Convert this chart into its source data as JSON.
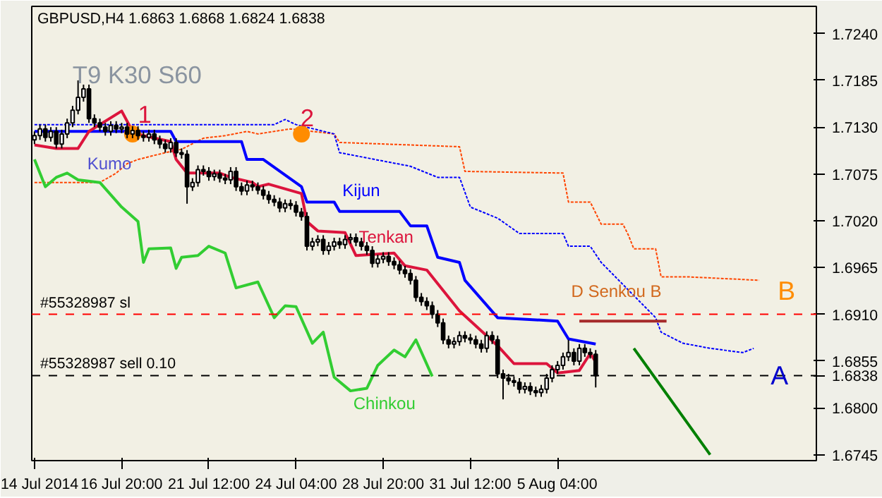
{
  "chart_data": {
    "type": "candlestick",
    "title": "GBPUSD,H4 1.6863 1.6868 1.6824 1.6838",
    "categories": [
      "14 Jul 2014",
      null,
      null,
      null,
      null,
      null,
      null,
      null,
      null,
      null,
      null,
      null,
      null,
      null,
      null,
      null,
      "16 Jul 20:00",
      null,
      null,
      null,
      null,
      null,
      null,
      null,
      null,
      null,
      null,
      null,
      null,
      null,
      null,
      null,
      "21 Jul 12:00",
      null,
      null,
      null,
      null,
      null,
      null,
      null,
      null,
      null,
      null,
      null,
      null,
      null,
      null,
      null,
      "24 Jul 04:00",
      null,
      null,
      null,
      null,
      null,
      null,
      null,
      null,
      null,
      null,
      null,
      null,
      null,
      null,
      null,
      "28 Jul 20:00",
      null,
      null,
      null,
      null,
      null,
      null,
      null,
      null,
      null,
      null,
      null,
      null,
      null,
      null,
      null,
      "31 Jul 12:00",
      null,
      null,
      null,
      null,
      null,
      null,
      null,
      null,
      null,
      null,
      null,
      null,
      null,
      null,
      null,
      "5 Aug 04:00",
      null,
      null,
      null,
      null,
      null,
      null,
      null,
      null,
      null,
      null,
      null,
      null,
      null,
      null,
      null,
      null,
      null,
      null,
      null,
      null,
      null,
      null,
      null,
      null,
      null,
      null,
      null,
      null,
      null,
      null,
      null,
      null,
      null,
      null,
      null,
      null,
      null,
      null,
      null,
      null,
      null,
      null,
      null,
      null,
      null,
      null,
      null
    ],
    "ohlc": [
      [
        1.7115,
        1.7125,
        1.711,
        1.712
      ],
      [
        1.712,
        1.7133,
        1.7115,
        1.7128
      ],
      [
        1.7128,
        1.7133,
        1.7113,
        1.7118
      ],
      [
        1.7118,
        1.713,
        1.7113,
        1.7125
      ],
      [
        1.7125,
        1.713,
        1.7105,
        1.711
      ],
      [
        1.711,
        1.7127,
        1.7105,
        1.7122
      ],
      [
        1.7122,
        1.714,
        1.7117,
        1.7135
      ],
      [
        1.7135,
        1.7155,
        1.713,
        1.715
      ],
      [
        1.715,
        1.7185,
        1.7145,
        1.7165
      ],
      [
        1.7165,
        1.718,
        1.716,
        1.7175
      ],
      [
        1.7175,
        1.718,
        1.7135,
        1.714
      ],
      [
        1.714,
        1.7145,
        1.713,
        1.7135
      ],
      [
        1.7135,
        1.714,
        1.7125,
        1.713
      ],
      [
        1.713,
        1.7135,
        1.712,
        1.7125
      ],
      [
        1.7125,
        1.7137,
        1.712,
        1.7132
      ],
      [
        1.7132,
        1.7137,
        1.7123,
        1.7128
      ],
      [
        1.7128,
        1.7135,
        1.7123,
        1.713
      ],
      [
        1.713,
        1.7135,
        1.7117,
        1.7122
      ],
      [
        1.7122,
        1.7131,
        1.7117,
        1.7126
      ],
      [
        1.7126,
        1.7131,
        1.7115,
        1.712
      ],
      [
        1.712,
        1.7125,
        1.7113,
        1.7118
      ],
      [
        1.7118,
        1.7127,
        1.7113,
        1.7122
      ],
      [
        1.7122,
        1.7127,
        1.711,
        1.7115
      ],
      [
        1.7115,
        1.712,
        1.7105,
        1.711
      ],
      [
        1.711,
        1.7115,
        1.71,
        1.7105
      ],
      [
        1.7105,
        1.7117,
        1.71,
        1.7112
      ],
      [
        1.7112,
        1.7117,
        1.7095,
        1.71
      ],
      [
        1.71,
        1.7105,
        1.7093,
        1.7098
      ],
      [
        1.7098,
        1.7103,
        1.704,
        1.706
      ],
      [
        1.706,
        1.707,
        1.7055,
        1.7065
      ],
      [
        1.7065,
        1.7085,
        1.706,
        1.708
      ],
      [
        1.708,
        1.7085,
        1.7073,
        1.7078
      ],
      [
        1.7078,
        1.7083,
        1.7067,
        1.7072
      ],
      [
        1.7072,
        1.708,
        1.7067,
        1.7075
      ],
      [
        1.7075,
        1.708,
        1.7065,
        1.707
      ],
      [
        1.707,
        1.7075,
        1.7063,
        1.7068
      ],
      [
        1.7068,
        1.7083,
        1.7063,
        1.7078
      ],
      [
        1.7078,
        1.7083,
        1.7055,
        1.706
      ],
      [
        1.706,
        1.7065,
        1.705,
        1.7055
      ],
      [
        1.7055,
        1.7067,
        1.705,
        1.7062
      ],
      [
        1.7062,
        1.7067,
        1.7055,
        1.706
      ],
      [
        1.706,
        1.7065,
        1.7051,
        1.7056
      ],
      [
        1.7056,
        1.7061,
        1.7045,
        1.705
      ],
      [
        1.705,
        1.7055,
        1.704,
        1.7045
      ],
      [
        1.7045,
        1.705,
        1.7037,
        1.7042
      ],
      [
        1.7042,
        1.7047,
        1.703,
        1.7035
      ],
      [
        1.7035,
        1.7045,
        1.703,
        1.704
      ],
      [
        1.704,
        1.7045,
        1.7033,
        1.7038
      ],
      [
        1.7038,
        1.7043,
        1.7025,
        1.703
      ],
      [
        1.703,
        1.7035,
        1.702,
        1.7025
      ],
      [
        1.7025,
        1.703,
        1.6985,
        1.699
      ],
      [
        1.699,
        1.7,
        1.6985,
        1.6995
      ],
      [
        1.6995,
        1.7003,
        1.699,
        1.6998
      ],
      [
        1.6998,
        1.7003,
        1.698,
        1.6985
      ],
      [
        1.6985,
        1.6995,
        1.698,
        1.699
      ],
      [
        1.699,
        1.7,
        1.6985,
        1.6995
      ],
      [
        1.6995,
        1.7,
        1.6987,
        1.6992
      ],
      [
        1.6992,
        1.7003,
        1.6987,
        1.6998
      ],
      [
        1.6998,
        1.7005,
        1.6993,
        1.7
      ],
      [
        1.7,
        1.7005,
        1.699,
        1.6995
      ],
      [
        1.6995,
        1.7,
        1.6985,
        1.699
      ],
      [
        1.699,
        1.6995,
        1.698,
        1.6985
      ],
      [
        1.6985,
        1.699,
        1.6965,
        1.697
      ],
      [
        1.697,
        1.698,
        1.6965,
        1.6975
      ],
      [
        1.6975,
        1.6983,
        1.697,
        1.6978
      ],
      [
        1.6978,
        1.6983,
        1.6967,
        1.6972
      ],
      [
        1.6972,
        1.6977,
        1.6963,
        1.6968
      ],
      [
        1.6968,
        1.6973,
        1.6957,
        1.6962
      ],
      [
        1.6962,
        1.6967,
        1.6953,
        1.6958
      ],
      [
        1.6958,
        1.6963,
        1.6945,
        1.695
      ],
      [
        1.695,
        1.6955,
        1.6925,
        1.693
      ],
      [
        1.693,
        1.6935,
        1.692,
        1.6925
      ],
      [
        1.6925,
        1.693,
        1.6915,
        1.692
      ],
      [
        1.692,
        1.6925,
        1.6905,
        1.691
      ],
      [
        1.691,
        1.6915,
        1.6895,
        1.69
      ],
      [
        1.69,
        1.6905,
        1.6875,
        1.688
      ],
      [
        1.688,
        1.6885,
        1.687,
        1.6875
      ],
      [
        1.6875,
        1.6883,
        1.687,
        1.6878
      ],
      [
        1.6878,
        1.689,
        1.6873,
        1.6885
      ],
      [
        1.6885,
        1.689,
        1.6877,
        1.6882
      ],
      [
        1.6882,
        1.6887,
        1.6875,
        1.688
      ],
      [
        1.688,
        1.6885,
        1.687,
        1.6875
      ],
      [
        1.6875,
        1.688,
        1.6865,
        1.687
      ],
      [
        1.687,
        1.689,
        1.6865,
        1.6885
      ],
      [
        1.6885,
        1.689,
        1.6875,
        1.688
      ],
      [
        1.688,
        1.6885,
        1.6835,
        1.684
      ],
      [
        1.684,
        1.6845,
        1.681,
        1.6835
      ],
      [
        1.6835,
        1.684,
        1.6827,
        1.6832
      ],
      [
        1.6832,
        1.6837,
        1.6825,
        1.683
      ],
      [
        1.683,
        1.6835,
        1.6817,
        1.6822
      ],
      [
        1.6822,
        1.683,
        1.6817,
        1.6825
      ],
      [
        1.6825,
        1.683,
        1.6815,
        1.682
      ],
      [
        1.682,
        1.6825,
        1.6813,
        1.6818
      ],
      [
        1.6818,
        1.6827,
        1.6813,
        1.6822
      ],
      [
        1.6822,
        1.684,
        1.6817,
        1.6835
      ],
      [
        1.6835,
        1.685,
        1.683,
        1.6845
      ],
      [
        1.6845,
        1.6855,
        1.684,
        1.685
      ],
      [
        1.685,
        1.6865,
        1.6845,
        1.686
      ],
      [
        1.686,
        1.688,
        1.6855,
        1.6865
      ],
      [
        1.6865,
        1.687,
        1.685,
        1.6855
      ],
      [
        1.6855,
        1.6875,
        1.685,
        1.687
      ],
      [
        1.687,
        1.6875,
        1.686,
        1.6865
      ],
      [
        1.6865,
        1.687,
        1.6858,
        1.6863
      ],
      [
        1.6863,
        1.6868,
        1.6824,
        1.6838
      ],
      null,
      null,
      null,
      null,
      null,
      null,
      null,
      null,
      null,
      null,
      null,
      null,
      null,
      null,
      null,
      null,
      null,
      null,
      null,
      null,
      null,
      null,
      null,
      null,
      null,
      null,
      null,
      null,
      null,
      null,
      null,
      null,
      null,
      null,
      null,
      null,
      null,
      null,
      null,
      null
    ],
    "series": [
      {
        "type": "line",
        "color": "#ff4500",
        "line_style": "dotted",
        "values": [
          1.7065,
          null,
          null,
          null,
          null,
          null,
          null,
          null,
          null,
          null,
          null,
          null,
          1.7065,
          null,
          null,
          1.7076,
          null,
          1.7087,
          null,
          1.7092,
          null,
          null,
          null,
          null,
          1.71,
          null,
          null,
          1.7104,
          null,
          null,
          null,
          1.7117,
          null,
          null,
          null,
          1.712,
          null,
          null,
          null,
          1.7125,
          null,
          1.7122,
          null,
          null,
          null,
          null,
          null,
          1.7128,
          null,
          null,
          null,
          null,
          null,
          null,
          null,
          1.7122,
          1.7112,
          null,
          null,
          null,
          null,
          null,
          null,
          null,
          null,
          null,
          null,
          null,
          null,
          null,
          null,
          null,
          null,
          null,
          null,
          null,
          null,
          null,
          1.7107,
          1.7078,
          null,
          null,
          null,
          null,
          null,
          null,
          null,
          null,
          null,
          null,
          null,
          null,
          null,
          null,
          null,
          null,
          null,
          1.7076,
          1.7042,
          null,
          null,
          null,
          1.7042,
          null,
          1.7016,
          null,
          null,
          null,
          1.7016,
          1.7003,
          1.6987,
          null,
          null,
          null,
          1.6987,
          1.6954,
          null,
          null,
          null,
          null,
          1.6954,
          null,
          null,
          null,
          null,
          null,
          null,
          null,
          null,
          null,
          null,
          null,
          null,
          1.695,
          null,
          null,
          null,
          null,
          null,
          null,
          null,
          null,
          null,
          null
        ]
      },
      {
        "type": "line",
        "color": "#0000ff",
        "line_style": "dotted",
        "values": [
          1.7133,
          null,
          null,
          null,
          null,
          null,
          null,
          null,
          null,
          null,
          null,
          null,
          null,
          null,
          null,
          null,
          null,
          null,
          null,
          null,
          null,
          null,
          null,
          null,
          null,
          1.7133,
          null,
          null,
          null,
          null,
          null,
          null,
          null,
          null,
          null,
          null,
          null,
          null,
          null,
          null,
          null,
          null,
          null,
          null,
          1.7133,
          null,
          1.7139,
          null,
          1.7133,
          null,
          null,
          null,
          null,
          null,
          null,
          1.7122,
          1.71,
          null,
          null,
          null,
          null,
          null,
          null,
          null,
          null,
          null,
          null,
          null,
          null,
          1.7084,
          null,
          null,
          null,
          null,
          1.7071,
          null,
          null,
          null,
          1.7071,
          null,
          1.7036,
          null,
          null,
          null,
          null,
          1.7023,
          null,
          null,
          null,
          1.7005,
          null,
          null,
          null,
          null,
          null,
          null,
          null,
          1.7005,
          1.699,
          null,
          null,
          null,
          1.699,
          null,
          1.6971,
          null,
          null,
          null,
          null,
          null,
          null,
          null,
          null,
          null,
          1.6906,
          1.6889,
          null,
          null,
          null,
          1.6876,
          null,
          null,
          null,
          null,
          1.687,
          null,
          null,
          null,
          null,
          null,
          1.6865,
          null,
          1.687,
          null,
          null,
          null,
          null,
          null,
          null,
          null,
          null,
          null,
          null,
          null
        ]
      },
      {
        "type": "line",
        "name": "Kijun",
        "color": "#0000ff",
        "values": [
          1.7125,
          null,
          null,
          null,
          null,
          null,
          null,
          null,
          null,
          null,
          null,
          null,
          null,
          null,
          null,
          null,
          null,
          null,
          null,
          null,
          null,
          null,
          null,
          null,
          null,
          1.7125,
          1.7113,
          null,
          null,
          null,
          null,
          null,
          null,
          null,
          null,
          null,
          null,
          null,
          1.7113,
          1.7092,
          null,
          null,
          1.7092,
          null,
          null,
          null,
          null,
          null,
          null,
          1.706,
          1.7042,
          null,
          null,
          null,
          null,
          1.7042,
          1.7031,
          null,
          null,
          null,
          null,
          null,
          null,
          null,
          null,
          null,
          null,
          1.7031,
          null,
          1.7014,
          null,
          null,
          1.7014,
          null,
          1.6977,
          null,
          null,
          null,
          1.6971,
          1.695,
          null,
          null,
          null,
          null,
          null,
          1.6906,
          null,
          null,
          null,
          null,
          null,
          null,
          null,
          null,
          null,
          null,
          1.6902,
          null,
          1.6881,
          null,
          null,
          null,
          null,
          1.6875,
          null,
          null,
          null,
          null,
          null,
          null,
          null,
          null,
          null,
          null,
          null,
          null,
          null,
          null,
          null,
          null,
          null,
          null,
          null,
          null,
          null,
          null,
          null,
          null,
          null,
          null,
          null,
          null,
          null,
          null,
          null,
          null,
          null,
          null,
          null,
          null,
          null,
          null,
          null,
          null
        ]
      },
      {
        "type": "line",
        "name": "Tenkan",
        "color": "#dc143c",
        "values": [
          1.7109,
          null,
          null,
          null,
          1.7105,
          null,
          null,
          null,
          1.7105,
          null,
          1.7125,
          null,
          null,
          null,
          null,
          null,
          1.7149,
          null,
          1.7125,
          null,
          1.712,
          null,
          null,
          null,
          null,
          1.7113,
          1.7092,
          null,
          1.7076,
          null,
          null,
          null,
          null,
          null,
          1.7076,
          null,
          1.7071,
          null,
          null,
          null,
          1.7065,
          1.706,
          null,
          1.7063,
          null,
          null,
          null,
          null,
          null,
          1.7052,
          1.7019,
          null,
          1.7008,
          null,
          null,
          null,
          null,
          1.7006,
          null,
          1.6979,
          null,
          null,
          null,
          null,
          null,
          null,
          1.6982,
          null,
          1.6967,
          null,
          null,
          null,
          1.6962,
          null,
          null,
          1.6938,
          null,
          null,
          1.6914,
          null,
          null,
          null,
          null,
          null,
          null,
          1.6873,
          null,
          null,
          1.6852,
          null,
          null,
          null,
          null,
          null,
          1.6852,
          null,
          1.6841,
          null,
          null,
          null,
          1.6844,
          null,
          1.6864,
          1.6854,
          null,
          null,
          null,
          null,
          null,
          null,
          null,
          null,
          null,
          null,
          null,
          null,
          null,
          null,
          null,
          null,
          null,
          null,
          null,
          null,
          null,
          null,
          null,
          null,
          null,
          null,
          null,
          null,
          null,
          null,
          null,
          null,
          null,
          null,
          null,
          null,
          null,
          null,
          null,
          null
        ]
      },
      {
        "type": "line",
        "name": "Chinkou",
        "color": "#32cd32",
        "values": [
          1.7092,
          null,
          1.706,
          null,
          1.7071,
          null,
          1.7076,
          null,
          1.7068,
          null,
          null,
          null,
          1.7065,
          null,
          null,
          null,
          1.7036,
          null,
          null,
          1.7019,
          1.6971,
          1.6987,
          null,
          null,
          null,
          1.6988,
          1.6964,
          1.6977,
          null,
          null,
          1.6979,
          null,
          1.699,
          null,
          null,
          1.6982,
          null,
          1.6941,
          null,
          null,
          null,
          1.6948,
          null,
          null,
          1.6906,
          null,
          1.692,
          null,
          1.6919,
          null,
          null,
          1.6876,
          null,
          1.6889,
          null,
          1.6836,
          null,
          null,
          1.682,
          null,
          null,
          1.6823,
          null,
          1.685,
          null,
          null,
          1.6868,
          null,
          1.686,
          null,
          1.688,
          null,
          null,
          1.6837,
          null,
          null,
          null,
          null,
          null,
          null,
          null,
          null,
          null,
          null,
          null,
          null,
          null,
          null,
          null,
          null,
          null,
          null,
          null,
          null,
          null,
          null,
          null,
          null,
          null,
          null,
          null,
          null,
          null,
          null,
          null,
          null,
          null,
          null,
          null,
          null,
          null,
          null,
          null,
          null,
          null,
          null,
          null,
          null,
          null,
          null,
          null,
          null,
          null,
          null,
          null,
          null,
          null,
          null,
          null,
          null,
          null,
          null,
          null,
          null,
          null,
          null,
          null,
          null,
          null,
          null,
          null,
          null,
          null,
          null
        ]
      },
      {
        "type": "line",
        "color": "#a52a2a",
        "values": [
          null,
          null,
          null,
          null,
          null,
          null,
          null,
          null,
          null,
          null,
          null,
          null,
          null,
          null,
          null,
          null,
          null,
          null,
          null,
          null,
          null,
          null,
          null,
          null,
          null,
          null,
          null,
          null,
          null,
          null,
          null,
          null,
          null,
          null,
          null,
          null,
          null,
          null,
          null,
          null,
          null,
          null,
          null,
          null,
          null,
          null,
          null,
          null,
          null,
          null,
          null,
          null,
          null,
          null,
          null,
          null,
          null,
          null,
          null,
          null,
          null,
          null,
          null,
          null,
          null,
          null,
          null,
          null,
          null,
          null,
          null,
          null,
          null,
          null,
          null,
          null,
          null,
          null,
          null,
          null,
          null,
          null,
          null,
          null,
          null,
          null,
          null,
          null,
          null,
          null,
          null,
          null,
          null,
          null,
          null,
          null,
          null,
          null,
          null,
          null,
          1.6902,
          null,
          null,
          null,
          null,
          null,
          null,
          null,
          null,
          null,
          null,
          null,
          null,
          null,
          null,
          null,
          1.6902,
          null,
          null,
          null,
          null,
          null,
          null,
          null,
          null,
          null,
          null,
          null,
          null,
          null,
          null,
          null,
          null,
          null,
          null,
          null,
          null,
          null,
          null,
          null,
          null,
          null,
          null,
          null
        ]
      },
      {
        "type": "line",
        "color": "#008000",
        "values": [
          null,
          null,
          null,
          null,
          null,
          null,
          null,
          null,
          null,
          null,
          null,
          null,
          null,
          null,
          null,
          null,
          null,
          null,
          null,
          null,
          null,
          null,
          null,
          null,
          null,
          null,
          null,
          null,
          null,
          null,
          null,
          null,
          null,
          null,
          null,
          null,
          null,
          null,
          null,
          null,
          null,
          null,
          null,
          null,
          null,
          null,
          null,
          null,
          null,
          null,
          null,
          null,
          null,
          null,
          null,
          null,
          null,
          null,
          null,
          null,
          null,
          null,
          null,
          null,
          null,
          null,
          null,
          null,
          null,
          null,
          null,
          null,
          null,
          null,
          null,
          null,
          null,
          null,
          null,
          null,
          null,
          null,
          null,
          null,
          null,
          null,
          null,
          null,
          null,
          null,
          null,
          null,
          null,
          null,
          null,
          null,
          null,
          null,
          null,
          null,
          null,
          null,
          null,
          null,
          null,
          null,
          null,
          null,
          null,
          null,
          1.687,
          null,
          null,
          null,
          null,
          null,
          null,
          null,
          null,
          null,
          null,
          null,
          null,
          null,
          1.6745,
          null,
          null,
          null,
          null,
          null,
          null,
          null,
          null,
          null,
          null,
          null,
          null,
          null,
          null,
          null,
          null,
          null,
          null,
          null
        ]
      },
      {
        "type": "scatter",
        "color": "#ff8c00",
        "marker": "circle",
        "values": [
          null,
          null,
          null,
          null,
          null,
          null,
          null,
          null,
          null,
          null,
          null,
          null,
          null,
          null,
          null,
          null,
          null,
          null,
          1.7122,
          null,
          null,
          null,
          null,
          null,
          null,
          null,
          null,
          null,
          null,
          null,
          null,
          null,
          null,
          null,
          null,
          null,
          null,
          null,
          null,
          null,
          null,
          null,
          null,
          null,
          null,
          null,
          null,
          null,
          null,
          1.7122,
          null,
          null,
          null,
          null,
          null,
          null,
          null,
          null,
          null,
          null,
          null,
          null,
          null,
          null,
          null,
          null,
          null,
          null,
          null,
          null,
          null,
          null,
          null,
          null,
          null,
          null,
          null,
          null,
          null,
          null,
          null,
          null,
          null,
          null,
          null,
          null,
          null,
          null,
          null,
          null,
          null,
          null,
          null,
          null,
          null,
          null,
          null,
          null,
          null,
          null,
          null,
          null,
          null,
          null,
          null,
          null,
          null,
          null,
          null,
          null,
          null,
          null,
          null,
          null,
          null,
          null,
          null,
          null,
          null,
          null,
          null,
          null,
          null,
          null,
          null,
          null,
          null,
          null,
          null,
          null,
          null,
          null,
          null,
          null,
          null,
          null,
          null,
          null,
          null,
          null,
          null,
          null,
          null,
          null
        ]
      }
    ],
    "annotations": [
      "T9 K30 S60",
      "1",
      "2",
      "Kumo",
      "D Senkou B",
      "B",
      {
        "text": "A",
        "y": 1.6838
      }
    ],
    "ref_lines": [
      {
        "axis": "y",
        "value": 1.691,
        "label": "#55328987 sl",
        "color": "#ff0000",
        "line_style": "dashed"
      },
      {
        "axis": "y",
        "value": 1.6838,
        "label": "#55328987 sell 0.10",
        "color": "#000000",
        "line_style": "dashed"
      }
    ],
    "ylim": [
      1.6738,
      1.7272
    ],
    "yticks": [
      {
        "value": 1.724,
        "label": "1.7240"
      },
      {
        "value": 1.7185,
        "label": "1.7185"
      },
      {
        "value": 1.713,
        "label": "1.7130"
      },
      {
        "value": 1.7075,
        "label": "1.7075"
      },
      {
        "value": 1.702,
        "label": "1.7020"
      },
      {
        "value": 1.6965,
        "label": "1.6965"
      },
      {
        "value": 1.691,
        "label": "1.6910"
      },
      {
        "value": 1.6855,
        "label": "1.6855"
      },
      {
        "value": 1.6838,
        "label": "1.6838"
      },
      {
        "value": 1.68,
        "label": "1.6800"
      },
      {
        "value": 1.6745,
        "label": "1.6745"
      }
    ],
    "grid": false
  }
}
